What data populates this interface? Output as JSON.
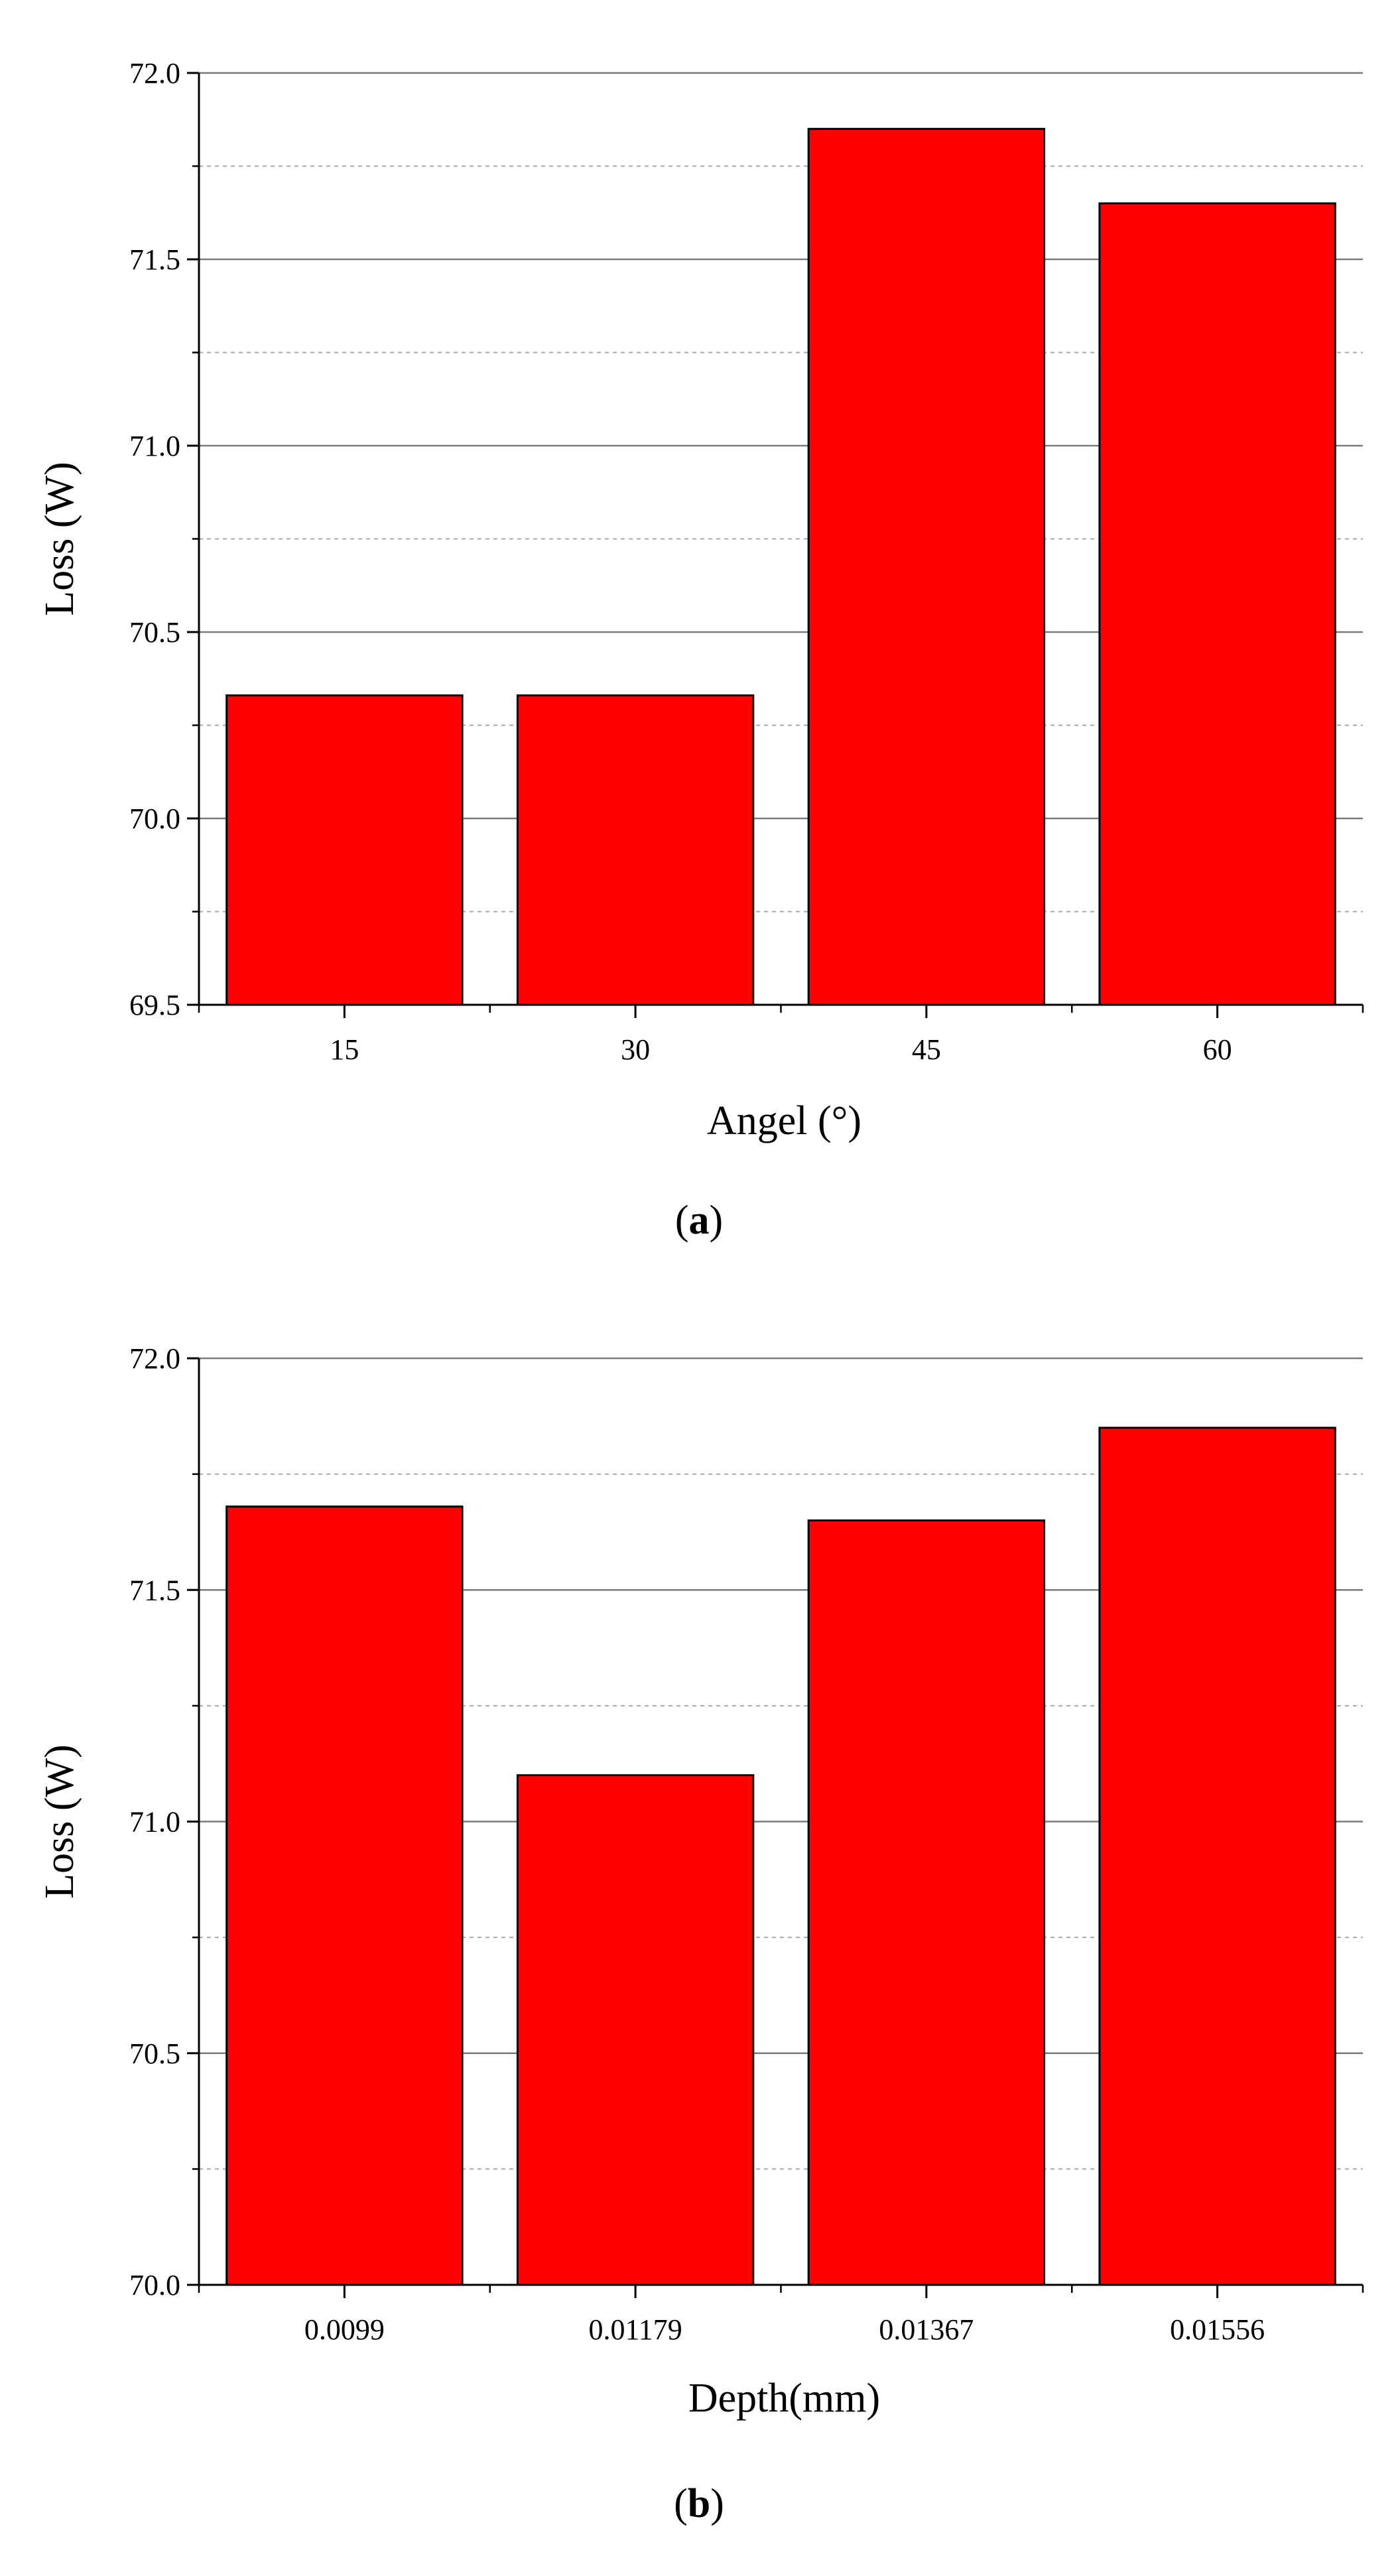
{
  "chart_data": [
    {
      "type": "bar",
      "caption": "a",
      "categories": [
        "15",
        "30",
        "45",
        "60"
      ],
      "values": [
        70.33,
        70.33,
        71.85,
        71.65
      ],
      "xlabel": "Angel (°)",
      "ylabel": "Loss (W)",
      "ylim": [
        69.5,
        72.0
      ],
      "yticks": [
        "69.5",
        "70.0",
        "70.5",
        "71.0",
        "71.5",
        "72.0"
      ],
      "grid": true,
      "bar_color": "#ff0000"
    },
    {
      "type": "bar",
      "caption": "b",
      "categories": [
        "0.0099",
        "0.01179",
        "0.01367",
        "0.01556"
      ],
      "values": [
        71.68,
        71.1,
        71.65,
        71.85
      ],
      "xlabel": "Depth(mm)",
      "ylabel": "Loss (W)",
      "ylim": [
        70.0,
        72.0
      ],
      "yticks": [
        "70.0",
        "70.5",
        "71.0",
        "71.5",
        "72.0"
      ],
      "grid": true,
      "bar_color": "#ff0000"
    }
  ]
}
